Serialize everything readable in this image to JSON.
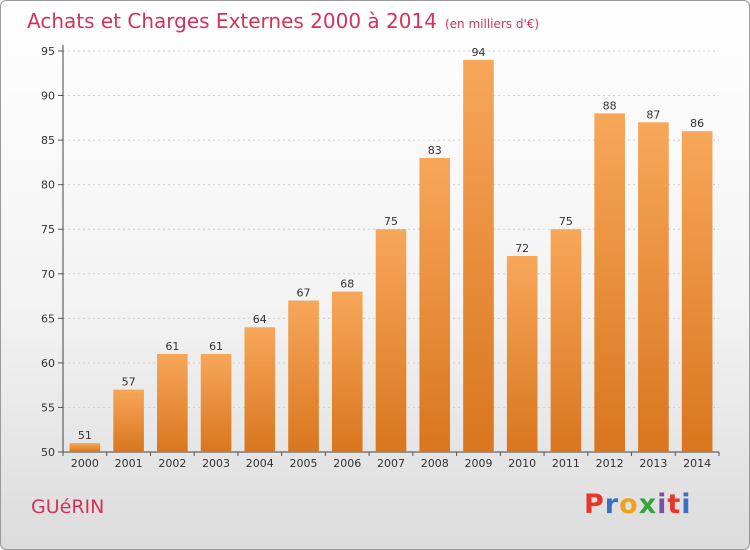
{
  "title": "Achats et Charges Externes 2000 à 2014",
  "unit": "(en milliers d'€)",
  "town": "GUéRIN",
  "logo": {
    "letters": [
      "P",
      "r",
      "o",
      "x",
      "i",
      "t",
      "i"
    ],
    "colors": [
      "#e9362d",
      "#3a6fc1",
      "#f0a21a",
      "#3aa33b",
      "#7e4fa6",
      "#e9362d",
      "#3a6fc1"
    ]
  },
  "colors": {
    "title": "#d2335b",
    "bar_light": "#f7a75a",
    "bar_dark": "#d9761e"
  },
  "chart_data": {
    "type": "bar",
    "title": "Achats et Charges Externes 2000 à 2014",
    "xlabel": "",
    "ylabel": "",
    "categories": [
      "2000",
      "2001",
      "2002",
      "2003",
      "2004",
      "2005",
      "2006",
      "2007",
      "2008",
      "2009",
      "2010",
      "2011",
      "2012",
      "2013",
      "2014"
    ],
    "values": [
      51,
      57,
      61,
      61,
      64,
      67,
      68,
      75,
      83,
      94,
      72,
      75,
      88,
      87,
      86
    ],
    "ylim": [
      50,
      95
    ],
    "yticks": [
      50,
      55,
      60,
      65,
      70,
      75,
      80,
      85,
      90,
      95
    ],
    "grid": "horizontal"
  }
}
